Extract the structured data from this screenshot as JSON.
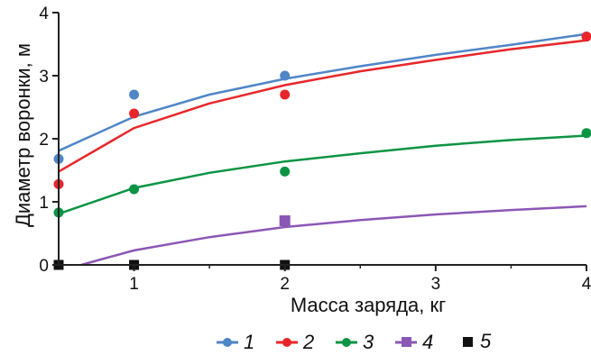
{
  "chart_data": {
    "type": "scatter",
    "title": "",
    "xlabel": "Масса заряда, кг",
    "ylabel": "Диаметр воронки, м",
    "xlim": [
      0.5,
      4
    ],
    "ylim": [
      0,
      4
    ],
    "x_ticks": [
      1,
      2,
      3,
      4
    ],
    "y_ticks": [
      0,
      1,
      2,
      3,
      4
    ],
    "grid": false,
    "legend_position": "bottom",
    "series": [
      {
        "name": "1",
        "color": "#4f86c6",
        "marker": "circle",
        "points": [
          [
            0.5,
            1.68
          ],
          [
            1,
            2.7
          ],
          [
            2,
            3.0
          ],
          [
            4,
            3.62
          ]
        ],
        "trend": [
          [
            0.5,
            1.81
          ],
          [
            1,
            2.35
          ],
          [
            1.5,
            2.7
          ],
          [
            2,
            2.95
          ],
          [
            2.5,
            3.15
          ],
          [
            3,
            3.33
          ],
          [
            3.5,
            3.49
          ],
          [
            4,
            3.66
          ]
        ]
      },
      {
        "name": "2",
        "color": "#e8262a",
        "marker": "circle",
        "points": [
          [
            0.5,
            1.28
          ],
          [
            1,
            2.4
          ],
          [
            2,
            2.7
          ],
          [
            4,
            3.62
          ]
        ],
        "trend": [
          [
            0.5,
            1.48
          ],
          [
            1,
            2.17
          ],
          [
            1.5,
            2.56
          ],
          [
            2,
            2.85
          ],
          [
            2.5,
            3.07
          ],
          [
            3,
            3.25
          ],
          [
            3.5,
            3.42
          ],
          [
            4,
            3.56
          ]
        ]
      },
      {
        "name": "3",
        "color": "#0b9444",
        "marker": "circle",
        "points": [
          [
            0.5,
            0.83
          ],
          [
            1,
            1.2
          ],
          [
            2,
            1.48
          ],
          [
            4,
            2.09
          ]
        ],
        "trend": [
          [
            0.5,
            0.81
          ],
          [
            1,
            1.22
          ],
          [
            1.5,
            1.46
          ],
          [
            2,
            1.64
          ],
          [
            2.5,
            1.77
          ],
          [
            3,
            1.89
          ],
          [
            3.5,
            1.98
          ],
          [
            4,
            2.05
          ]
        ]
      },
      {
        "name": "4",
        "color": "#8b57b5",
        "marker": "square",
        "points": [
          [
            2,
            0.7
          ]
        ],
        "trend": [
          [
            0.65,
            0.0
          ],
          [
            0.8,
            0.1
          ],
          [
            1,
            0.23
          ],
          [
            1.5,
            0.44
          ],
          [
            2,
            0.6
          ],
          [
            2.5,
            0.71
          ],
          [
            3,
            0.8
          ],
          [
            3.5,
            0.87
          ],
          [
            4,
            0.93
          ]
        ]
      },
      {
        "name": "5",
        "color": "#111111",
        "marker": "square",
        "points": [
          [
            0.5,
            0.0
          ],
          [
            1,
            0.0
          ],
          [
            2,
            0.0
          ]
        ],
        "trend": []
      }
    ]
  }
}
